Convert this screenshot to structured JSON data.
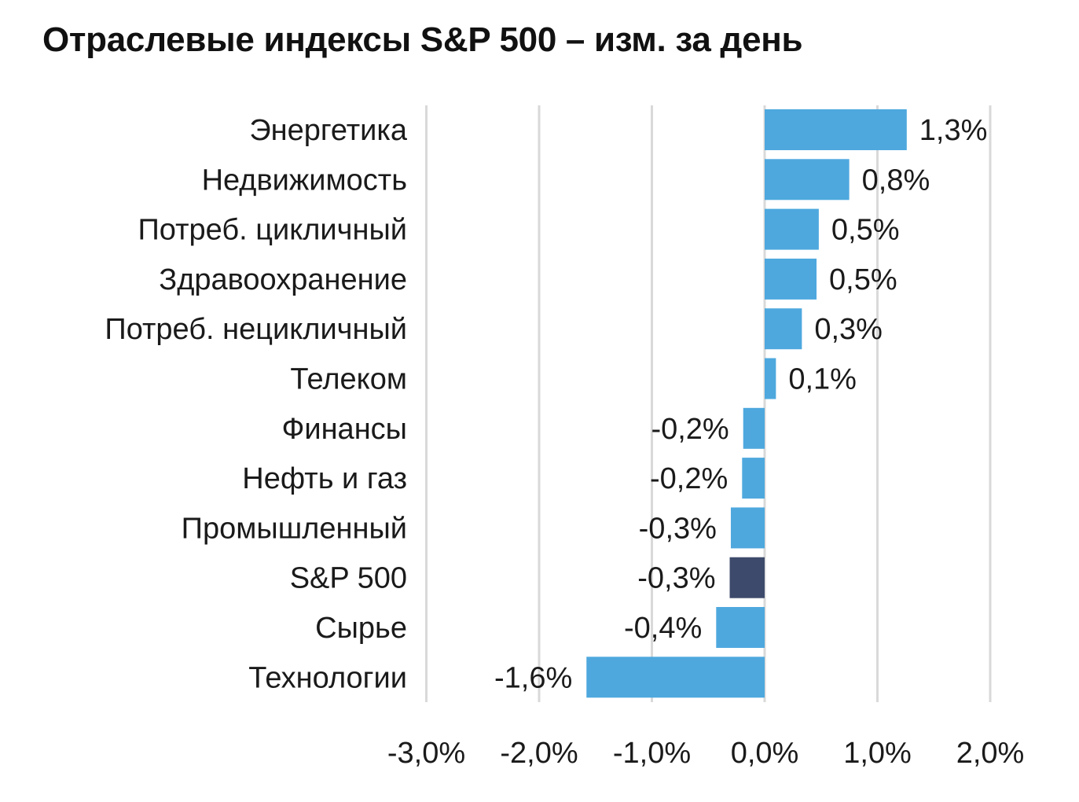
{
  "chart_data": {
    "type": "bar",
    "orientation": "horizontal",
    "title": "Отраслевые индексы S&P 500 – изм. за день",
    "categories": [
      "Энергетика",
      "Недвижимость",
      "Потреб. цикличный",
      "Здравоохранение",
      "Потреб. нецикличный",
      "Телеком",
      "Финансы",
      "Нефть и газ",
      "Промышленный",
      "S&P 500",
      "Сырье",
      "Технологии"
    ],
    "values": [
      1.26,
      0.75,
      0.48,
      0.46,
      0.33,
      0.1,
      -0.19,
      -0.2,
      -0.3,
      -0.31,
      -0.43,
      -1.58
    ],
    "value_labels": [
      "1,3%",
      "0,8%",
      "0,5%",
      "0,5%",
      "0,3%",
      "0,1%",
      "-0,2%",
      "-0,2%",
      "-0,3%",
      "-0,3%",
      "-0,4%",
      "-1,6%"
    ],
    "highlight_category": "S&P 500",
    "colors": {
      "bar": "#4ea8de",
      "highlight": "#3d4a6b",
      "grid": "#d9d9d9"
    },
    "xlim": [
      -3.0,
      2.0
    ],
    "x_ticks": [
      -3,
      -2,
      -1,
      0,
      1,
      2
    ],
    "x_tick_labels": [
      "-3,0%",
      "-2,0%",
      "-1,0%",
      "0,0%",
      "1,0%",
      "2,0%"
    ],
    "grid": "vertical",
    "legend": "none"
  }
}
